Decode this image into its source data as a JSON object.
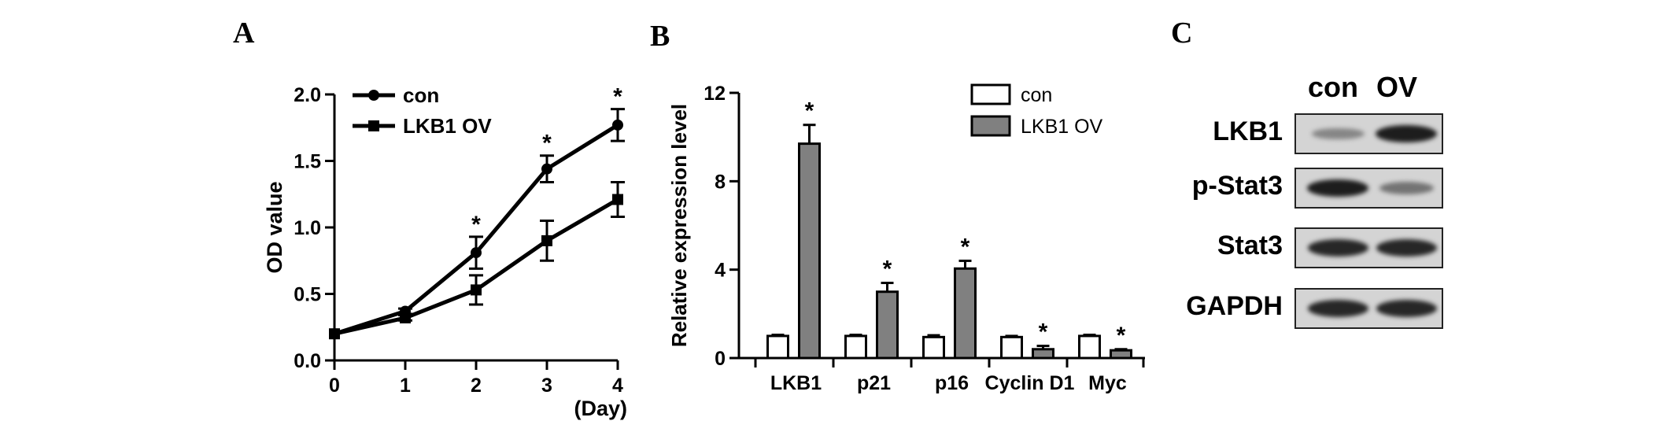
{
  "panels": {
    "a": "A",
    "b": "B",
    "c": "C"
  },
  "chart_data": [
    {
      "type": "line",
      "panel": "A",
      "xlabel": "(Day)",
      "ylabel": "OD value",
      "x": [
        0,
        1,
        2,
        3,
        4
      ],
      "x_ticks": [
        "0",
        "1",
        "2",
        "3",
        "4"
      ],
      "y_ticks": [
        "0.0",
        "0.5",
        "1.0",
        "1.5",
        "2.0"
      ],
      "ylim": [
        0,
        2.0
      ],
      "xlim": [
        0,
        4
      ],
      "legend_placement": "top-left",
      "series": [
        {
          "name": "con",
          "marker": "circle",
          "values": [
            0.2,
            0.37,
            0.81,
            1.44,
            1.77
          ],
          "errors": [
            0.0,
            0.02,
            0.12,
            0.1,
            0.12
          ]
        },
        {
          "name": "LKB1 OV",
          "marker": "square",
          "values": [
            0.2,
            0.32,
            0.53,
            0.9,
            1.21
          ],
          "errors": [
            0.0,
            0.02,
            0.11,
            0.15,
            0.13
          ]
        }
      ],
      "annotations": [
        {
          "x": 2,
          "text": "*"
        },
        {
          "x": 3,
          "text": "*"
        },
        {
          "x": 4,
          "text": "*"
        }
      ]
    },
    {
      "type": "bar",
      "panel": "B",
      "ylabel": "Relative expression level",
      "categories": [
        "LKB1",
        "p21",
        "p16",
        "Cyclin D1",
        "Myc"
      ],
      "y_ticks": [
        "0",
        "4",
        "8",
        "12"
      ],
      "ylim": [
        0,
        12
      ],
      "legend_placement": "top-right",
      "series": [
        {
          "name": "con",
          "color": "#ffffff",
          "values": [
            1.0,
            1.0,
            0.95,
            0.95,
            1.0
          ],
          "errors": [
            0.05,
            0.05,
            0.08,
            0.05,
            0.05
          ]
        },
        {
          "name": "LKB1 OV",
          "color": "#808080",
          "values": [
            9.7,
            3.0,
            4.05,
            0.4,
            0.35
          ],
          "errors": [
            0.85,
            0.4,
            0.35,
            0.15,
            0.05
          ]
        }
      ],
      "annotations": [
        {
          "category": "LKB1",
          "text": "*"
        },
        {
          "category": "p21",
          "text": "*"
        },
        {
          "category": "p16",
          "text": "*"
        },
        {
          "category": "Cyclin D1",
          "text": "*"
        },
        {
          "category": "Myc",
          "text": "*"
        }
      ]
    }
  ],
  "blot": {
    "columns": [
      "con",
      "OV"
    ],
    "rows": [
      {
        "label": "LKB1",
        "intensity": [
          0.35,
          0.9
        ]
      },
      {
        "label": "p-Stat3",
        "intensity": [
          0.9,
          0.45
        ]
      },
      {
        "label": "Stat3",
        "intensity": [
          0.85,
          0.85
        ]
      },
      {
        "label": "GAPDH",
        "intensity": [
          0.85,
          0.85
        ]
      }
    ]
  }
}
